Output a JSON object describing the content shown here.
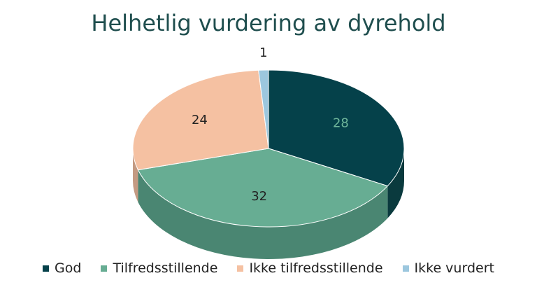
{
  "chart_data": {
    "type": "pie",
    "title": "Helhetlig vurdering av dyrehold",
    "categories": [
      "God",
      "Tilfredsstillende",
      "Ikke tilfredsstillende",
      "Ikke vurdert"
    ],
    "values": [
      28,
      32,
      24,
      1
    ],
    "colors": [
      "#05414a",
      "#67ad93",
      "#f5c1a2",
      "#9cc7de"
    ],
    "side_colors": [
      "#0a3a3e",
      "#4a8672",
      "#c49a82",
      "#7aa3b8"
    ],
    "label_colors": [
      "#6fb69b",
      "#222222",
      "#222222",
      "#222222"
    ],
    "legend_position": "bottom",
    "view": "3d-tilted"
  }
}
